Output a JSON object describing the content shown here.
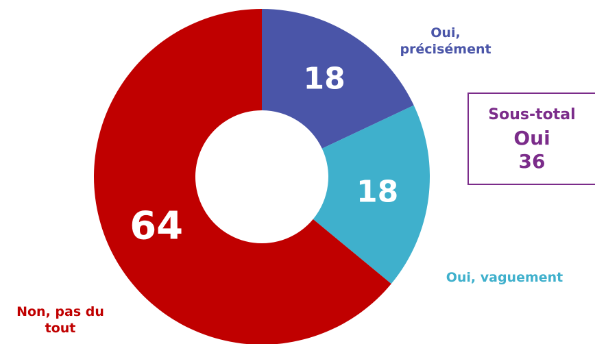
{
  "chart_data": {
    "type": "pie",
    "donut": true,
    "categories": [
      "Oui, précisément",
      "Oui, vaguement",
      "Non, pas du tout"
    ],
    "values": [
      18,
      18,
      64
    ],
    "colors": [
      "#4a55a8",
      "#3fb0cc",
      "#c00000"
    ],
    "annotation": {
      "title": "Sous-total",
      "label": "Oui",
      "value": 36
    }
  }
}
